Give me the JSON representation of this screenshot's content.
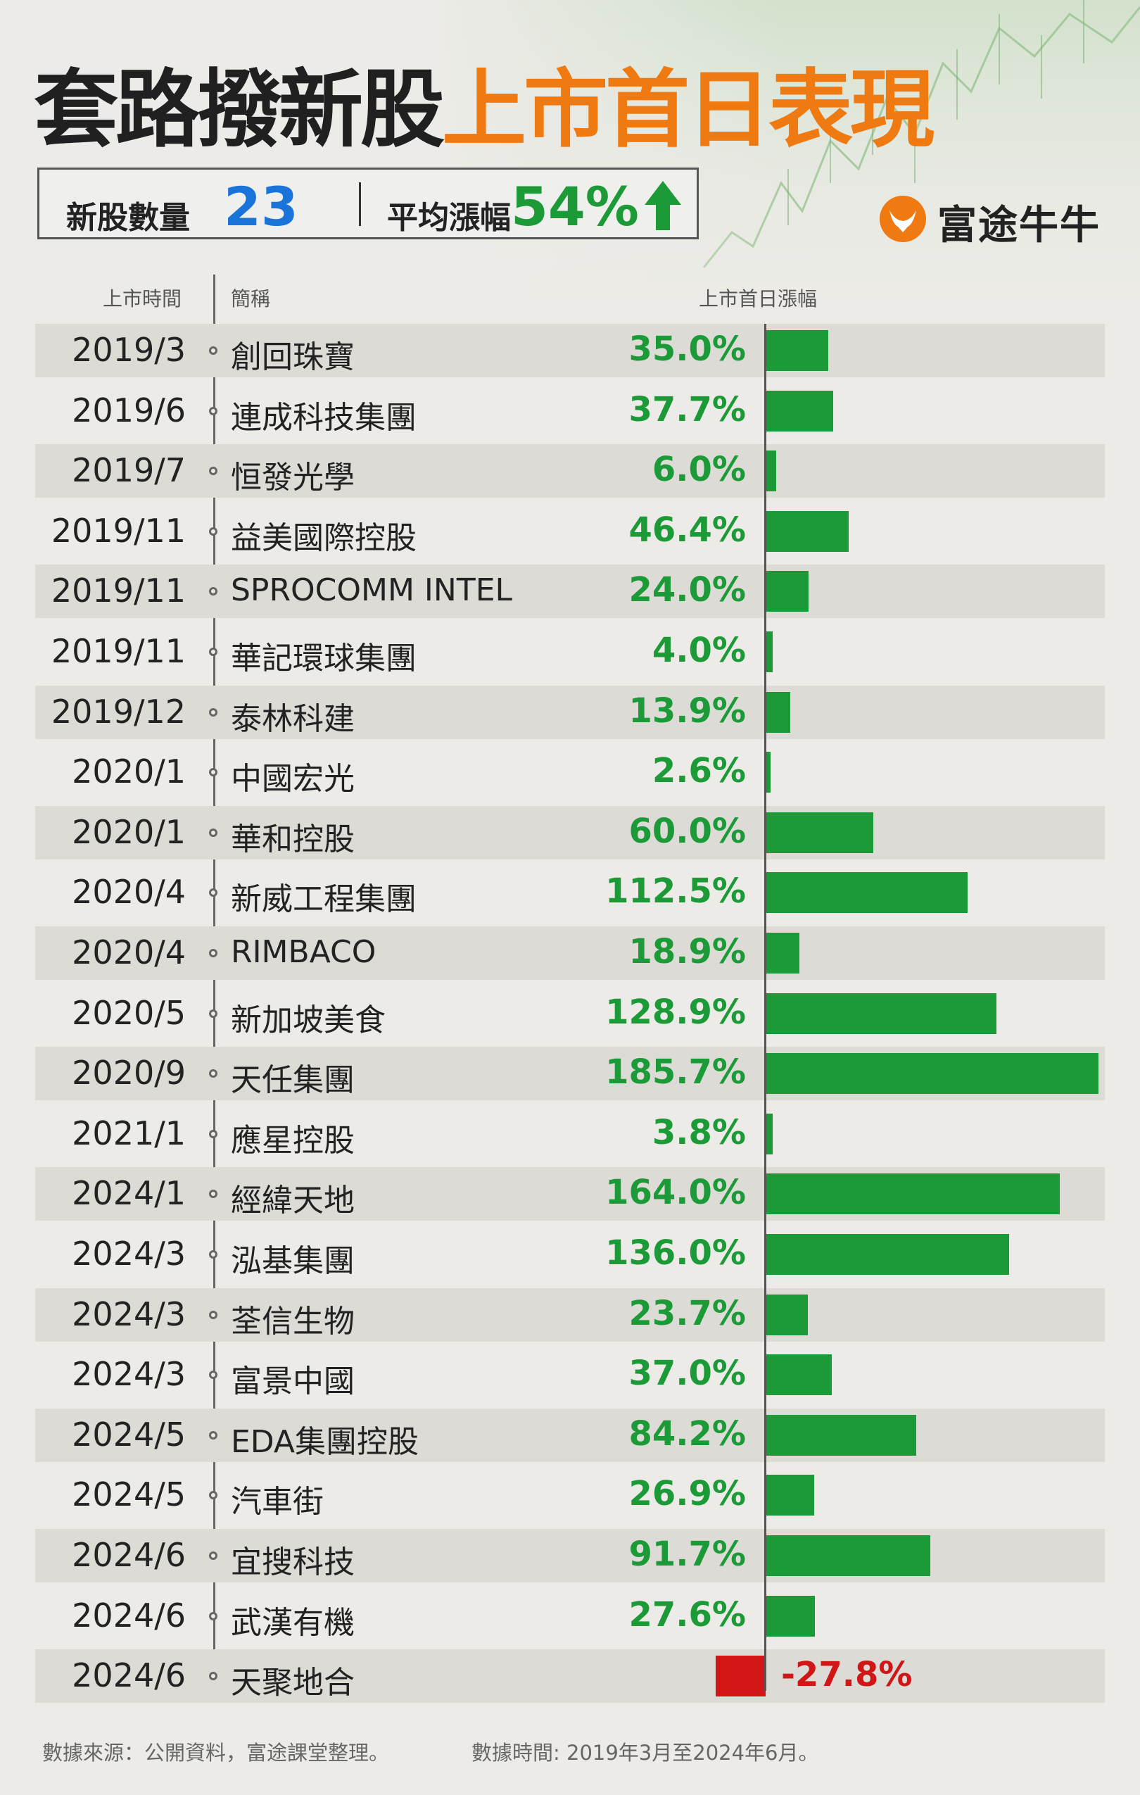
{
  "title": {
    "part1": "套路撥新股",
    "part2": "上市首日表現"
  },
  "stats": {
    "count_label": "新股數量",
    "count_value": "23",
    "avg_label": "平均漲幅",
    "avg_value": "54%"
  },
  "brand": {
    "name": "富途牛牛"
  },
  "columns": {
    "date": "上市時間",
    "name": "簡稱",
    "change": "上市首日漲幅"
  },
  "colors": {
    "positive": "#1c9a38",
    "negative": "#d01616",
    "title_accent": "#f07a12",
    "stat_blue": "#1a73d9"
  },
  "chart_data": {
    "type": "bar",
    "orientation": "horizontal",
    "series": [
      {
        "values": [
          35.0,
          37.7,
          6.0,
          46.4,
          24.0,
          4.0,
          13.9,
          2.6,
          60.0,
          112.5,
          18.9,
          128.9,
          185.7,
          3.8,
          164.0,
          136.0,
          23.7,
          37.0,
          84.2,
          26.9,
          91.7,
          27.6,
          -27.8
        ]
      }
    ],
    "categories": [
      "創回珠寶",
      "連成科技集團",
      "恒發光學",
      "益美國際控股",
      "SPROCOMM INTEL",
      "華記環球集團",
      "泰林科建",
      "中國宏光",
      "華和控股",
      "新威工程集團",
      "RIMBACO",
      "新加坡美食",
      "天任集團",
      "應星控股",
      "經緯天地",
      "泓基集團",
      "荃信生物",
      "富景中國",
      "EDA集團控股",
      "汽車街",
      "宜搜科技",
      "武漢有機",
      "天聚地合"
    ],
    "dates": [
      "2019/3",
      "2019/6",
      "2019/7",
      "2019/11",
      "2019/11",
      "2019/11",
      "2019/12",
      "2020/1",
      "2020/1",
      "2020/4",
      "2020/4",
      "2020/5",
      "2020/9",
      "2021/1",
      "2024/1",
      "2024/3",
      "2024/3",
      "2024/3",
      "2024/5",
      "2024/5",
      "2024/6",
      "2024/6",
      "2024/6"
    ],
    "labels": [
      "35.0%",
      "37.7%",
      "6.0%",
      "46.4%",
      "24.0%",
      "4.0%",
      "13.9%",
      "2.6%",
      "60.0%",
      "112.5%",
      "18.9%",
      "128.9%",
      "185.7%",
      "3.8%",
      "164.0%",
      "136.0%",
      "23.7%",
      "37.0%",
      "84.2%",
      "26.9%",
      "91.7%",
      "27.6%",
      "-27.8%"
    ],
    "xlim": [
      -27.8,
      185.7
    ]
  },
  "footer": {
    "source": "數據來源：公開資料，富途課堂整理。",
    "period": "數據時間: 2019年3月至2024年6月。"
  }
}
